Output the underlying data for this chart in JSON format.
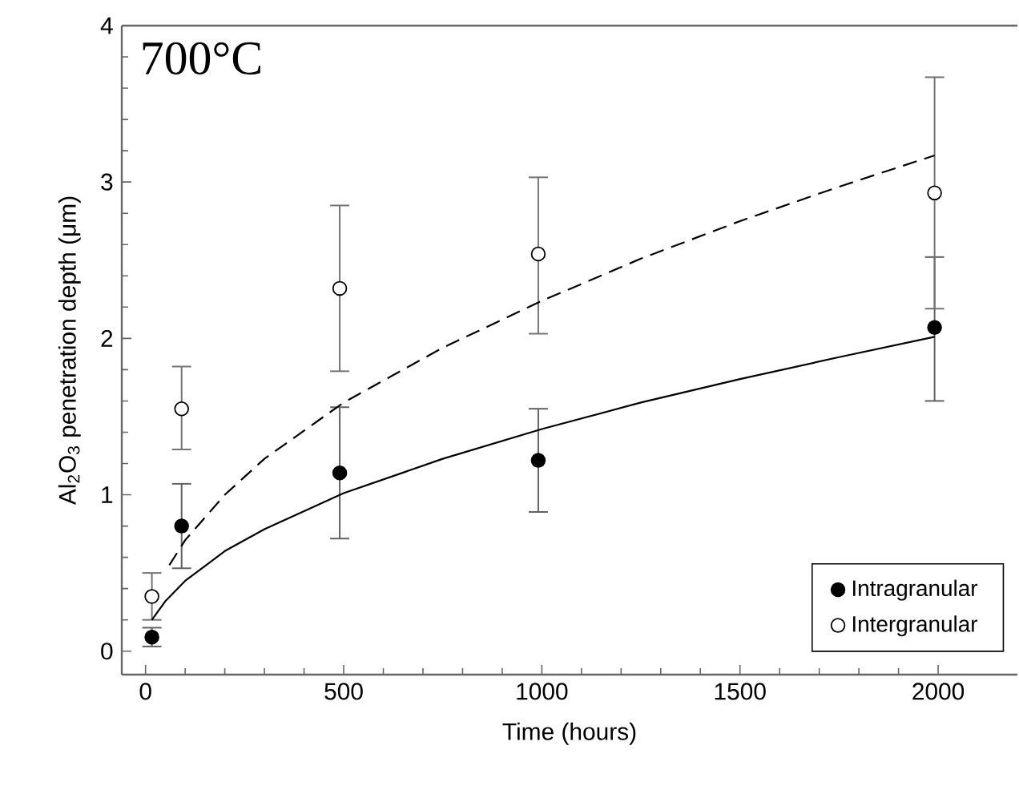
{
  "chart_data": {
    "type": "scatter",
    "xlabel": "Time (hours)",
    "ylabel": "Al$_{2}$O$_{3}$ penetration depth (μm)",
    "annotations": [
      "700°C"
    ],
    "xlim": [
      -60,
      2200
    ],
    "xticks": [
      0,
      500,
      1000,
      1500,
      2000
    ],
    "ylim": [
      -0.15,
      4
    ],
    "yticks": [
      0,
      1,
      2,
      3,
      4
    ],
    "legend": "bottom right",
    "grid": false,
    "series": [
      {
        "name": "Intragranular",
        "marker": "circle",
        "color": "#000000",
        "x": [
          16,
          91,
          490,
          991,
          1991
        ],
        "values": [
          0.09,
          0.8,
          1.14,
          1.22,
          2.07
        ],
        "errors": [
          [
            0.03,
            0.15
          ],
          [
            0.53,
            1.07
          ],
          [
            0.72,
            1.56
          ],
          [
            0.89,
            1.55
          ],
          [
            1.6,
            2.52
          ]
        ]
      },
      {
        "name": "Intergranular",
        "marker": "circle",
        "color": "#ffffff",
        "x": [
          16,
          91,
          490,
          991,
          1991
        ],
        "values": [
          0.35,
          1.55,
          2.32,
          2.54,
          2.93
        ],
        "errors": [
          [
            0.2,
            0.5
          ],
          [
            1.29,
            1.82
          ],
          [
            1.79,
            2.85
          ],
          [
            2.03,
            3.03
          ],
          [
            2.19,
            3.67
          ]
        ]
      },
      {
        "type": "line",
        "line_style": "solid",
        "marker": "none",
        "color": "#000000",
        "x": [
          16,
          50,
          100,
          200,
          300,
          500,
          750,
          1000,
          1250,
          1500,
          1750,
          1991
        ],
        "values": [
          0.2,
          0.32,
          0.45,
          0.64,
          0.78,
          1.01,
          1.23,
          1.42,
          1.59,
          1.74,
          1.88,
          2.01
        ]
      },
      {
        "type": "line",
        "line_style": "dashed",
        "marker": "none",
        "color": "#000000",
        "x": [
          60,
          100,
          200,
          300,
          500,
          750,
          1000,
          1250,
          1500,
          1750,
          1991
        ],
        "values": [
          0.55,
          0.71,
          1.0,
          1.23,
          1.59,
          1.94,
          2.24,
          2.51,
          2.75,
          2.97,
          3.17
        ]
      }
    ]
  }
}
